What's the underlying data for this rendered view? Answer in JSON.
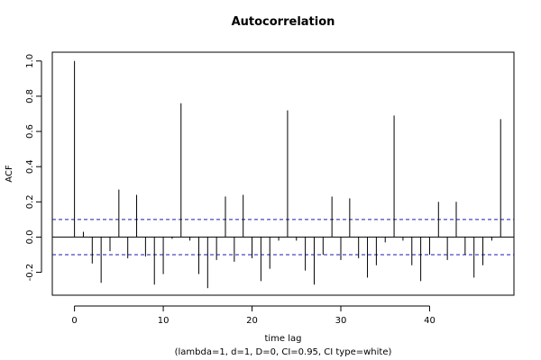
{
  "chart_data": {
    "type": "bar",
    "title": "Autocorrelation",
    "xlabel": "time lag",
    "ylabel": "ACF",
    "subtitle": "(lambda=1, d=1, D=0, CI=0.95, CI type=white)",
    "xlim": [
      -2.5,
      49.5
    ],
    "ylim": [
      -0.33,
      1.05
    ],
    "x_ticks": [
      0,
      10,
      20,
      30,
      40
    ],
    "x_tick_labels": [
      "0",
      "10",
      "20",
      "30",
      "40"
    ],
    "y_ticks": [
      -0.2,
      0.0,
      0.2,
      0.4,
      0.6,
      0.8,
      1.0
    ],
    "y_tick_labels": [
      "-0.2",
      "0.0",
      "0.2",
      "0.4",
      "0.6",
      "0.8",
      "1.0"
    ],
    "confidence_limits": [
      0.1,
      -0.1
    ],
    "lags": [
      0,
      1,
      2,
      3,
      4,
      5,
      6,
      7,
      8,
      9,
      10,
      11,
      12,
      13,
      14,
      15,
      16,
      17,
      18,
      19,
      20,
      21,
      22,
      23,
      24,
      25,
      26,
      27,
      28,
      29,
      30,
      31,
      32,
      33,
      34,
      35,
      36,
      37,
      38,
      39,
      40,
      41,
      42,
      43,
      44,
      45,
      46,
      47,
      48
    ],
    "values": [
      1.0,
      0.03,
      -0.15,
      -0.26,
      -0.08,
      0.27,
      -0.12,
      0.24,
      -0.11,
      -0.27,
      -0.21,
      -0.01,
      0.76,
      -0.02,
      -0.21,
      -0.29,
      -0.13,
      0.23,
      -0.14,
      0.24,
      -0.12,
      -0.25,
      -0.18,
      -0.02,
      0.72,
      -0.02,
      -0.19,
      -0.27,
      -0.1,
      0.23,
      -0.13,
      0.22,
      -0.12,
      -0.23,
      -0.16,
      -0.03,
      0.69,
      -0.02,
      -0.16,
      -0.25,
      -0.1,
      0.2,
      -0.13,
      0.2,
      -0.1,
      -0.23,
      -0.16,
      -0.02,
      0.67
    ],
    "colors": {
      "lag_line": "#000000",
      "ci_line": "#1a1ab4",
      "zero_line": "#000000",
      "background": "#ffffff"
    }
  }
}
